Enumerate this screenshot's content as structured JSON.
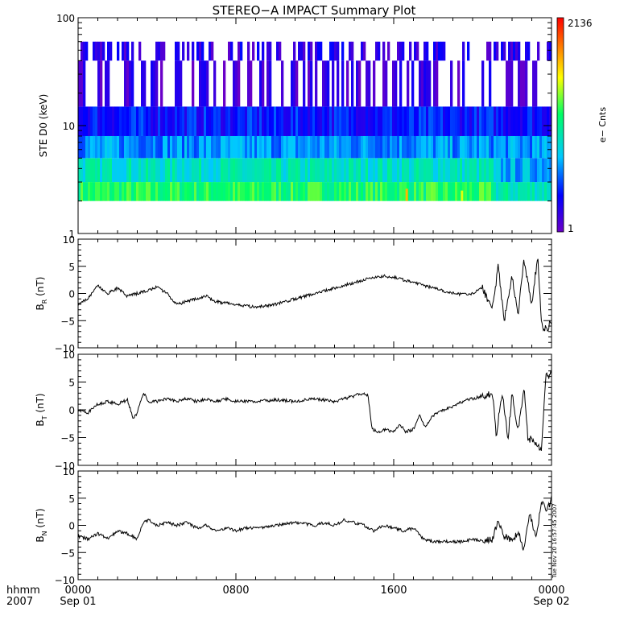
{
  "title": "STEREO−A IMPACT Summary Plot",
  "timestamp": "Tue Nov 20 16:57:45 2007",
  "time_axis": {
    "unit_label": "hhmm",
    "year_label": "2007",
    "ticks": [
      {
        "time": "0000",
        "date": "Sep 01",
        "hour": 0
      },
      {
        "time": "0800",
        "date": "",
        "hour": 8
      },
      {
        "time": "1600",
        "date": "",
        "hour": 16
      },
      {
        "time": "0000",
        "date": "Sep 02",
        "hour": 24
      }
    ]
  },
  "chart_data": [
    {
      "type": "heatmap",
      "ylabel": "STE D0 (keV)",
      "y_scale": "log",
      "ylim": [
        1,
        100
      ],
      "yticks": [
        "1",
        "10",
        "100"
      ],
      "colorbar": {
        "label": "e− Cnts",
        "min": "1",
        "max": "2136",
        "colors": [
          "#6a00c8",
          "#0000ff",
          "#00c8ff",
          "#00ff64",
          "#ffff00",
          "#ff8000",
          "#ff0000"
        ]
      },
      "energy_bands": [
        {
          "energy_keV": [
            2,
            3
          ],
          "level": 0.55
        },
        {
          "energy_keV": [
            3,
            5
          ],
          "level": 0.43
        },
        {
          "energy_keV": [
            5,
            8
          ],
          "level": 0.3
        },
        {
          "energy_keV": [
            8,
            15
          ],
          "level": 0.18
        },
        {
          "energy_keV": [
            15,
            40
          ],
          "level": 0.07
        },
        {
          "energy_keV": [
            40,
            60
          ],
          "level": 0.1
        }
      ],
      "hot_spots": [
        {
          "hour": 16.6,
          "energy_keV": [
            2,
            2.6
          ],
          "level": 0.8
        },
        {
          "hour": 19.4,
          "energy_keV": [
            2,
            2.5
          ],
          "level": 0.7
        }
      ]
    },
    {
      "type": "line",
      "series": [
        {
          "name": "",
          "values_by_hour": [
            [
              0,
              -2
            ],
            [
              0.5,
              -1
            ],
            [
              1,
              1.5
            ],
            [
              1.5,
              0
            ],
            [
              2,
              1
            ],
            [
              2.5,
              -0.5
            ],
            [
              3,
              0
            ],
            [
              3.5,
              0.5
            ],
            [
              4,
              1.2
            ],
            [
              4.5,
              0
            ],
            [
              5,
              -2
            ],
            [
              5.5,
              -1.5
            ],
            [
              6,
              -1
            ],
            [
              6.5,
              -0.5
            ],
            [
              7,
              -1.5
            ],
            [
              7.5,
              -1.8
            ],
            [
              8,
              -2
            ],
            [
              8.5,
              -2.3
            ],
            [
              9,
              -2.5
            ],
            [
              9.5,
              -2.3
            ],
            [
              10,
              -2
            ],
            [
              10.5,
              -1.5
            ],
            [
              11,
              -1
            ],
            [
              11.5,
              -0.5
            ],
            [
              12,
              0
            ],
            [
              12.5,
              0.5
            ],
            [
              13,
              1
            ],
            [
              13.5,
              1.5
            ],
            [
              14,
              2
            ],
            [
              14.5,
              2.5
            ],
            [
              15,
              3
            ],
            [
              15.5,
              3.2
            ],
            [
              16,
              3
            ],
            [
              16.5,
              2.5
            ],
            [
              17,
              2
            ],
            [
              17.5,
              1.5
            ],
            [
              18,
              1
            ],
            [
              18.5,
              0.5
            ],
            [
              19,
              0
            ],
            [
              19.5,
              -0.2
            ],
            [
              20,
              0
            ],
            [
              20.5,
              1
            ],
            [
              21,
              -3
            ],
            [
              21.3,
              5
            ],
            [
              21.6,
              -5
            ],
            [
              22,
              3
            ],
            [
              22.3,
              -4
            ],
            [
              22.6,
              6
            ],
            [
              23,
              -2
            ],
            [
              23.3,
              7
            ],
            [
              23.5,
              -6
            ],
            [
              23.8,
              -6.5
            ],
            [
              24,
              -5
            ]
          ]
        }
      ],
      "ylabel": "B",
      "ylabel_sub": "R",
      "ylabel_unit": "(nT)",
      "ylim": [
        -10,
        10
      ],
      "yticks": [
        "−10",
        "−5",
        "0",
        "5",
        "10"
      ]
    },
    {
      "type": "line",
      "series": [
        {
          "name": "",
          "values_by_hour": [
            [
              0,
              0
            ],
            [
              0.5,
              -0.5
            ],
            [
              1,
              1
            ],
            [
              1.5,
              1.5
            ],
            [
              2,
              1
            ],
            [
              2.5,
              1.8
            ],
            [
              2.8,
              -1.5
            ],
            [
              3,
              -0.5
            ],
            [
              3.3,
              3
            ],
            [
              3.6,
              1.5
            ],
            [
              4,
              1.5
            ],
            [
              4.5,
              2
            ],
            [
              5,
              1.5
            ],
            [
              5.5,
              2
            ],
            [
              6,
              1.5
            ],
            [
              6.5,
              2
            ],
            [
              7,
              1.5
            ],
            [
              7.5,
              2
            ],
            [
              8,
              1.5
            ],
            [
              9,
              1.5
            ],
            [
              10,
              1.8
            ],
            [
              11,
              1.5
            ],
            [
              12,
              2
            ],
            [
              13,
              1.5
            ],
            [
              13.5,
              2
            ],
            [
              14,
              2.5
            ],
            [
              14.5,
              3
            ],
            [
              14.7,
              2.5
            ],
            [
              14.9,
              -3.5
            ],
            [
              15.2,
              -4
            ],
            [
              15.6,
              -3.5
            ],
            [
              16,
              -4
            ],
            [
              16.3,
              -2.5
            ],
            [
              16.6,
              -4
            ],
            [
              17,
              -3.5
            ],
            [
              17.3,
              -1
            ],
            [
              17.6,
              -3
            ],
            [
              18,
              -1
            ],
            [
              18.5,
              0
            ],
            [
              19,
              0.5
            ],
            [
              19.5,
              1.5
            ],
            [
              20,
              2
            ],
            [
              20.5,
              2.5
            ],
            [
              21,
              3
            ],
            [
              21.2,
              -4.5
            ],
            [
              21.5,
              3
            ],
            [
              21.8,
              -5
            ],
            [
              22,
              3
            ],
            [
              22.3,
              -4
            ],
            [
              22.6,
              4
            ],
            [
              22.8,
              -5
            ],
            [
              23.2,
              -6
            ],
            [
              23.5,
              -7
            ],
            [
              23.7,
              6
            ],
            [
              24,
              6.5
            ]
          ]
        }
      ],
      "ylabel": "B",
      "ylabel_sub": "T",
      "ylabel_unit": "(nT)",
      "ylim": [
        -10,
        10
      ],
      "yticks": [
        "−10",
        "−5",
        "0",
        "5",
        "10"
      ]
    },
    {
      "type": "line",
      "series": [
        {
          "name": "",
          "values_by_hour": [
            [
              0,
              -2
            ],
            [
              0.5,
              -2.5
            ],
            [
              1,
              -1.5
            ],
            [
              1.5,
              -2.5
            ],
            [
              2,
              -1
            ],
            [
              2.5,
              -1.5
            ],
            [
              3,
              -2.5
            ],
            [
              3.3,
              0.5
            ],
            [
              3.6,
              1
            ],
            [
              4,
              0
            ],
            [
              4.5,
              0.5
            ],
            [
              5,
              0
            ],
            [
              5.5,
              0.5
            ],
            [
              6,
              -0.5
            ],
            [
              6.5,
              0
            ],
            [
              7,
              -1
            ],
            [
              7.5,
              -0.5
            ],
            [
              8,
              -1
            ],
            [
              8.5,
              -0.5
            ],
            [
              9,
              -0.5
            ],
            [
              10,
              0
            ],
            [
              11,
              0.5
            ],
            [
              12,
              0
            ],
            [
              12.5,
              0.5
            ],
            [
              13,
              0
            ],
            [
              13.5,
              1
            ],
            [
              14,
              0.5
            ],
            [
              14.5,
              0
            ],
            [
              15,
              -1
            ],
            [
              15.5,
              0
            ],
            [
              16,
              -0.5
            ],
            [
              16.5,
              -1
            ],
            [
              17,
              -0.5
            ],
            [
              17.5,
              -2.5
            ],
            [
              18,
              -3
            ],
            [
              18.5,
              -3
            ],
            [
              19,
              -3
            ],
            [
              19.5,
              -3
            ],
            [
              20,
              -2.5
            ],
            [
              20.5,
              -3
            ],
            [
              21,
              -2.5
            ],
            [
              21.3,
              1
            ],
            [
              21.6,
              -2
            ],
            [
              22,
              -3
            ],
            [
              22.3,
              -1
            ],
            [
              22.6,
              -4.5
            ],
            [
              22.9,
              2
            ],
            [
              23.2,
              -2
            ],
            [
              23.5,
              4
            ],
            [
              23.8,
              3
            ],
            [
              24,
              5
            ]
          ]
        }
      ],
      "ylabel": "B",
      "ylabel_sub": "N",
      "ylabel_unit": "(nT)",
      "ylim": [
        -10,
        10
      ],
      "yticks": [
        "−10",
        "−5",
        "0",
        "5",
        "10"
      ]
    }
  ]
}
